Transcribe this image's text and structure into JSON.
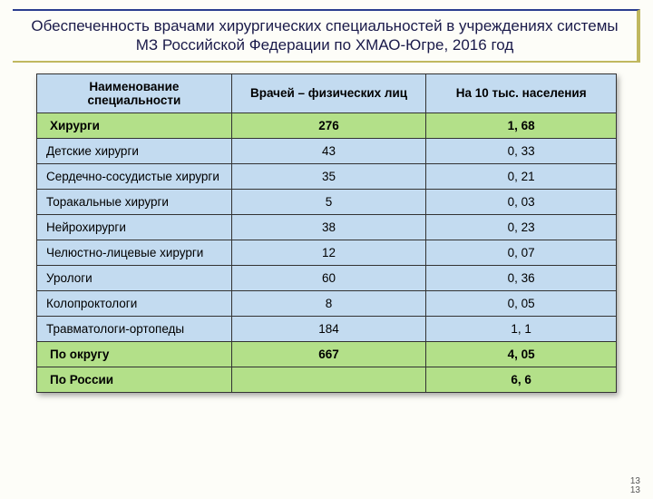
{
  "title": "Обеспеченность врачами хирургических специальностей в учреждениях системы МЗ Российской Федерации по ХМАО-Югре, 2016 год",
  "columns": [
    "Наименование специальности",
    "Врачей – физических лиц",
    "На 10 тыс. населения"
  ],
  "rows": [
    {
      "type": "green",
      "name": "Хирурги",
      "count": "276",
      "per10k": "1, 68"
    },
    {
      "type": "normal",
      "name": "Детские хирурги",
      "count": "43",
      "per10k": "0, 33"
    },
    {
      "type": "normal",
      "name": "Сердечно-сосудистые хирурги",
      "count": "35",
      "per10k": "0, 21"
    },
    {
      "type": "normal",
      "name": "Торакальные хирурги",
      "count": "5",
      "per10k": "0, 03"
    },
    {
      "type": "normal",
      "name": "Нейрохирурги",
      "count": "38",
      "per10k": "0, 23"
    },
    {
      "type": "normal",
      "name": "Челюстно-лицевые хирурги",
      "count": "12",
      "per10k": "0, 07"
    },
    {
      "type": "normal",
      "name": "Урологи",
      "count": "60",
      "per10k": "0, 36"
    },
    {
      "type": "normal",
      "name": "Колопроктологи",
      "count": "8",
      "per10k": "0, 05"
    },
    {
      "type": "normal",
      "name": "Травматологи-ортопеды",
      "count": "184",
      "per10k": "1, 1"
    },
    {
      "type": "green",
      "name": "По округу",
      "count": "667",
      "per10k": "4, 05"
    },
    {
      "type": "green",
      "name": "По России",
      "count": "",
      "per10k": "6, 6"
    }
  ],
  "pagenum": "13",
  "colors": {
    "header_bg": "#c3dbf0",
    "green_bg": "#b3e089",
    "normal_bg": "#c3dbf0",
    "border": "#333333",
    "title_border_top": "#2a3d8f",
    "title_border_accent": "#c0b860",
    "page_bg": "#fdfdf8"
  }
}
